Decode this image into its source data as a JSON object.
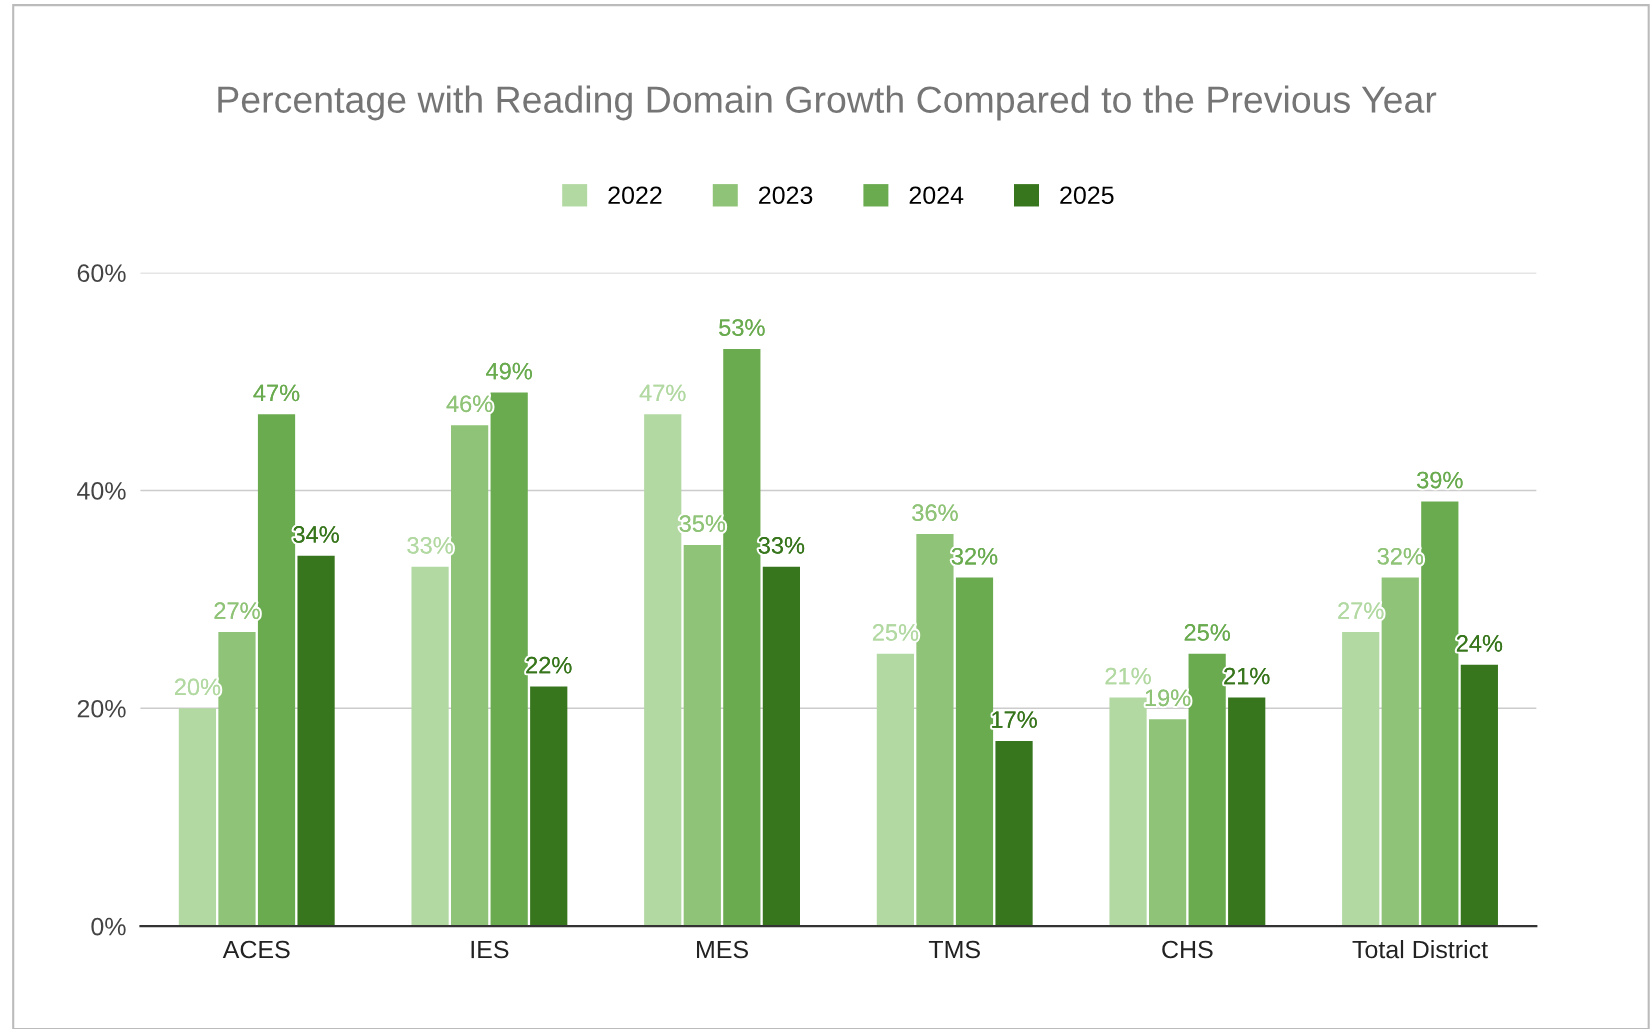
{
  "chart_data": {
    "type": "bar",
    "title": "Percentage with Reading Domain Growth Compared to the Previous Year",
    "categories": [
      "ACES",
      "IES",
      "MES",
      "TMS",
      "CHS",
      "Total District"
    ],
    "series": [
      {
        "name": "2022",
        "color": "#b3d9a3",
        "values": [
          20,
          33,
          47,
          25,
          21,
          27
        ],
        "value_labels": [
          "20%",
          "33%",
          "47%",
          "25%",
          "21%",
          "27%"
        ]
      },
      {
        "name": "2023",
        "color": "#8fc377",
        "values": [
          27,
          46,
          35,
          36,
          19,
          32
        ],
        "value_labels": [
          "27%",
          "46%",
          "35%",
          "36%",
          "19%",
          "32%"
        ]
      },
      {
        "name": "2024",
        "color": "#6aab50",
        "values": [
          47,
          49,
          53,
          32,
          25,
          39
        ],
        "value_labels": [
          "47%",
          "49%",
          "53%",
          "32%",
          "25%",
          "39%"
        ]
      },
      {
        "name": "2025",
        "color": "#38761d",
        "values": [
          34,
          22,
          33,
          17,
          21,
          24
        ],
        "value_labels": [
          "34%",
          "22%",
          "33%",
          "17%",
          "21%",
          "24%"
        ]
      }
    ],
    "ylim": [
      0,
      60
    ],
    "yticks": [
      {
        "value": 0,
        "label": "0%"
      },
      {
        "value": 20,
        "label": "20%"
      },
      {
        "value": 40,
        "label": "40%"
      },
      {
        "value": 60,
        "label": "60%"
      }
    ],
    "grid": "y",
    "legend": "top"
  }
}
